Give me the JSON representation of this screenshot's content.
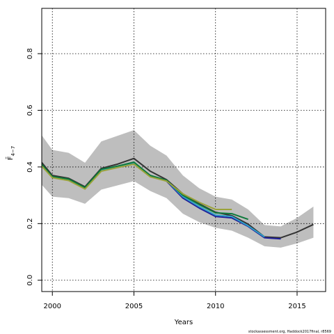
{
  "chart_data": {
    "type": "line",
    "xlabel": "Years",
    "ylabel": "F̄",
    "ylabel_sub": "4−7",
    "caption": "stockassessment.org, Haddock2017final, r8569",
    "xlim": [
      1999.35,
      2016.75
    ],
    "ylim": [
      -0.04,
      0.96
    ],
    "xticks": [
      2000,
      2005,
      2010,
      2015
    ],
    "yticks": [
      0.0,
      0.2,
      0.4,
      0.6,
      0.8
    ],
    "xtick_labels": [
      "2000",
      "2005",
      "2010",
      "2015"
    ],
    "ytick_labels": [
      "0.0",
      "0.2",
      "0.4",
      "0.6",
      "0.8"
    ],
    "grid": true,
    "band": {
      "color": "#bebebe",
      "x": [
        1999,
        2000,
        2001,
        2002,
        2003,
        2004,
        2005,
        2006,
        2007,
        2008,
        2009,
        2010,
        2011,
        2012,
        2013,
        2014,
        2015,
        2016
      ],
      "upper": [
        0.54,
        0.46,
        0.45,
        0.415,
        0.49,
        0.51,
        0.53,
        0.475,
        0.44,
        0.37,
        0.325,
        0.295,
        0.285,
        0.25,
        0.195,
        0.19,
        0.22,
        0.26
      ],
      "lower": [
        0.36,
        0.295,
        0.29,
        0.27,
        0.32,
        0.335,
        0.35,
        0.315,
        0.29,
        0.235,
        0.205,
        0.185,
        0.175,
        0.15,
        0.12,
        0.115,
        0.13,
        0.15
      ]
    },
    "series": [
      {
        "color": "#333333",
        "x": [
          1999,
          2000,
          2001,
          2002,
          2003,
          2004,
          2005,
          2006,
          2007,
          2008,
          2009,
          2010,
          2011,
          2012,
          2013,
          2014,
          2015,
          2016
        ],
        "values": [
          0.44,
          0.37,
          0.36,
          0.33,
          0.395,
          0.41,
          0.43,
          0.385,
          0.355,
          0.305,
          0.27,
          0.24,
          0.228,
          0.198,
          0.153,
          0.15,
          0.17,
          0.197
        ]
      },
      {
        "color": "#1f1f9a",
        "x": [
          1999,
          2000,
          2001,
          2002,
          2003,
          2004,
          2005,
          2006,
          2007,
          2008,
          2009,
          2010,
          2011,
          2012,
          2013,
          2014
        ],
        "values": [
          0.43,
          0.365,
          0.355,
          0.325,
          0.39,
          0.402,
          0.415,
          0.37,
          0.35,
          0.29,
          0.255,
          0.225,
          0.22,
          0.19,
          0.15,
          0.146
        ]
      },
      {
        "color": "#2fa0c8",
        "x": [
          1999,
          2000,
          2001,
          2002,
          2003,
          2004,
          2005,
          2006,
          2007,
          2008,
          2009,
          2010,
          2011,
          2012,
          2013
        ],
        "values": [
          0.43,
          0.365,
          0.355,
          0.325,
          0.39,
          0.402,
          0.415,
          0.368,
          0.352,
          0.295,
          0.26,
          0.23,
          0.225,
          0.192,
          0.153
        ]
      },
      {
        "color": "#0e7a3c",
        "x": [
          1999,
          2000,
          2001,
          2002,
          2003,
          2004,
          2005,
          2006,
          2007,
          2008,
          2009,
          2010,
          2011,
          2012
        ],
        "values": [
          0.432,
          0.366,
          0.357,
          0.327,
          0.392,
          0.403,
          0.417,
          0.37,
          0.353,
          0.3,
          0.267,
          0.238,
          0.235,
          0.215
        ]
      },
      {
        "color": "#9aa33a",
        "x": [
          1999,
          2000,
          2001,
          2002,
          2003,
          2004,
          2005,
          2006,
          2007,
          2008,
          2009,
          2010,
          2011
        ],
        "values": [
          0.425,
          0.362,
          0.352,
          0.322,
          0.385,
          0.398,
          0.41,
          0.365,
          0.35,
          0.305,
          0.275,
          0.25,
          0.25
        ]
      }
    ]
  }
}
